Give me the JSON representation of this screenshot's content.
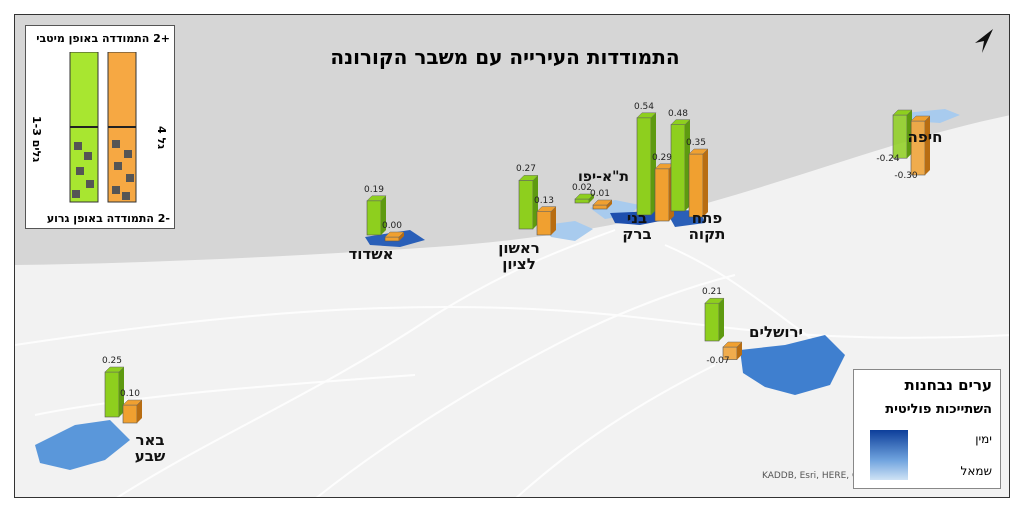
{
  "title": "התמודדות העירייה עם משבר הקורונה",
  "legend_top": {
    "top": "+2 התמודדה באופן מיטבי",
    "bottom": "-2 התמודדה באופן גרוע",
    "green_label": "גלים 1-3",
    "orange_label": "גל 4"
  },
  "legend_bottom": {
    "title": "ערים נבחנות",
    "subtitle": "השתייכות פוליטית",
    "right": "ימין",
    "left": "שמאל"
  },
  "attribution": "KADDB, Esri, HERE, G",
  "colors": {
    "green": "#8ecf1e",
    "orange": "#f0a030",
    "blue_dark": "#0d3e9a",
    "blue_light": "#6fa3de",
    "sea": "#d6d6d6"
  },
  "cities": [
    {
      "name": "חיפה",
      "g": "-0.24",
      "o": "-0.30"
    },
    {
      "name": "ת\"א-יפו",
      "g": "0.02",
      "o": "0.01"
    },
    {
      "name": "בני ברק",
      "g": "0.54",
      "o": "0.29"
    },
    {
      "name": "פתח תקוה",
      "g": "0.48",
      "o": "0.35"
    },
    {
      "name": "ראשון לציון",
      "g": "0.27",
      "o": "0.13"
    },
    {
      "name": "אשדוד",
      "g": "0.19",
      "o": "0.00"
    },
    {
      "name": "ירושלים",
      "g": "0.21",
      "o": "-0.07"
    },
    {
      "name": "באר שבע",
      "g": "0.25",
      "o": "0.10"
    }
  ]
}
